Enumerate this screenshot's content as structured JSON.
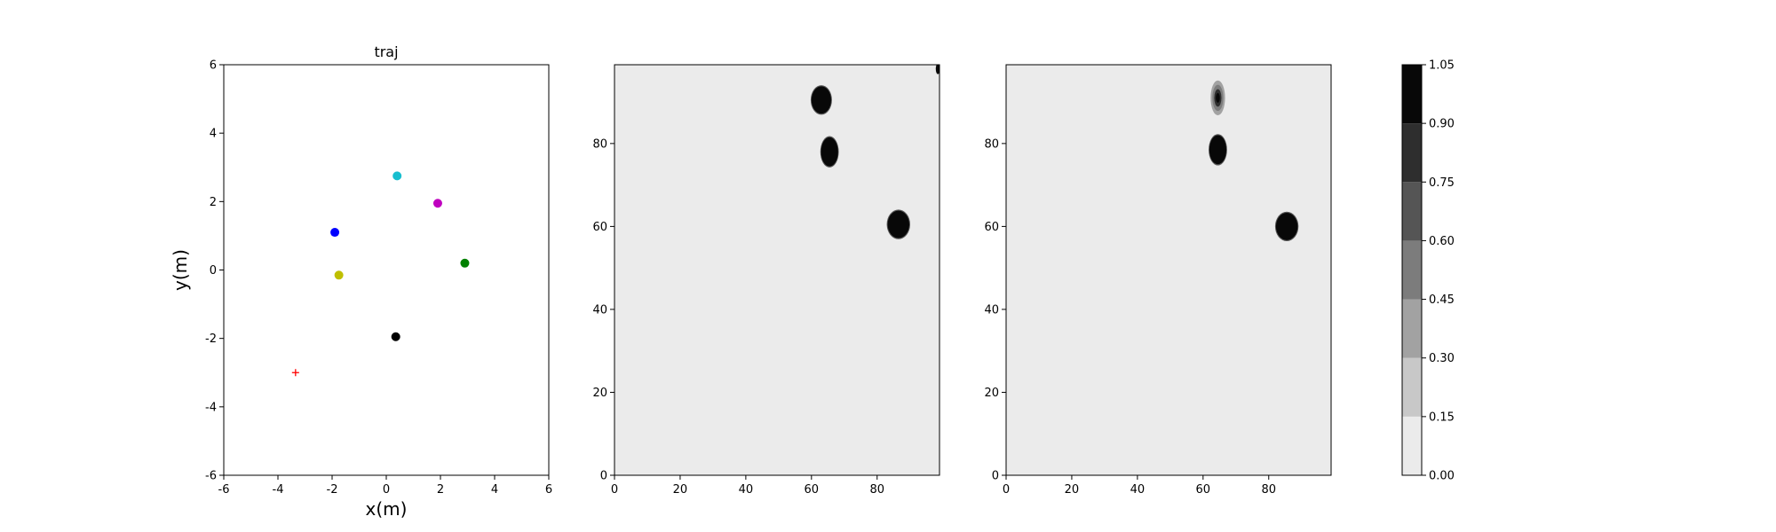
{
  "chart_data": [
    {
      "type": "scatter",
      "title": "traj",
      "xlabel": "x(m)",
      "ylabel": "y(m)",
      "xlim": [
        -6,
        6
      ],
      "ylim": [
        -6,
        6
      ],
      "xticks": [
        -6,
        -4,
        -2,
        0,
        2,
        4,
        6
      ],
      "yticks": [
        -6,
        -4,
        -2,
        0,
        2,
        4,
        6
      ],
      "points": [
        {
          "x": 0.4,
          "y": 2.75,
          "color": "#17becf",
          "marker": "circle"
        },
        {
          "x": 1.9,
          "y": 1.95,
          "color": "#bf00bf",
          "marker": "circle"
        },
        {
          "x": -1.9,
          "y": 1.1,
          "color": "#0000ff",
          "marker": "circle"
        },
        {
          "x": 2.9,
          "y": 0.2,
          "color": "#008000",
          "marker": "circle"
        },
        {
          "x": -1.75,
          "y": -0.15,
          "color": "#bfbf00",
          "marker": "circle"
        },
        {
          "x": 0.35,
          "y": -1.95,
          "color": "#000000",
          "marker": "circle"
        },
        {
          "x": -3.35,
          "y": -3.0,
          "color": "#ff0000",
          "marker": "plus"
        }
      ]
    },
    {
      "type": "heatmap",
      "title": "",
      "xlim": [
        0,
        99
      ],
      "ylim": [
        0,
        99
      ],
      "xticks": [
        0,
        20,
        40,
        60,
        80
      ],
      "yticks": [
        0,
        20,
        40,
        60,
        80
      ],
      "background_value": 0.05,
      "blobs": [
        {
          "x": 63,
          "y": 90.5,
          "rx": 3.0,
          "ry": 3.3,
          "value": 1.0
        },
        {
          "x": 65.5,
          "y": 78,
          "rx": 2.6,
          "ry": 3.5,
          "value": 1.0
        },
        {
          "x": 86.5,
          "y": 60.5,
          "rx": 3.3,
          "ry": 3.3,
          "value": 1.0
        },
        {
          "x": 98.5,
          "y": 98,
          "rx": 0.6,
          "ry": 1.2,
          "value": 1.0
        }
      ]
    },
    {
      "type": "heatmap",
      "title": "",
      "xlim": [
        0,
        99
      ],
      "ylim": [
        0,
        99
      ],
      "xticks": [
        0,
        20,
        40,
        60,
        80
      ],
      "yticks": [
        0,
        20,
        40,
        60,
        80
      ],
      "background_value": 0.05,
      "blobs": [
        {
          "x": 64.5,
          "y": 91,
          "rx": 2.2,
          "ry": 4.2,
          "value": 0.75
        },
        {
          "x": 64.5,
          "y": 78.5,
          "rx": 2.6,
          "ry": 3.5,
          "value": 1.0
        },
        {
          "x": 85.5,
          "y": 60,
          "rx": 3.3,
          "ry": 3.3,
          "value": 1.0
        }
      ]
    }
  ],
  "colorbar": {
    "levels": [
      0.0,
      0.15,
      0.3,
      0.45,
      0.6,
      0.75,
      0.9,
      1.05
    ],
    "tick_labels": [
      "0.00",
      "0.15",
      "0.30",
      "0.45",
      "0.60",
      "0.75",
      "0.90",
      "1.05"
    ],
    "band_colors": [
      "#ebebeb",
      "#c8c8c8",
      "#a2a2a2",
      "#7c7c7c",
      "#555555",
      "#2e2e2e",
      "#080808"
    ]
  }
}
